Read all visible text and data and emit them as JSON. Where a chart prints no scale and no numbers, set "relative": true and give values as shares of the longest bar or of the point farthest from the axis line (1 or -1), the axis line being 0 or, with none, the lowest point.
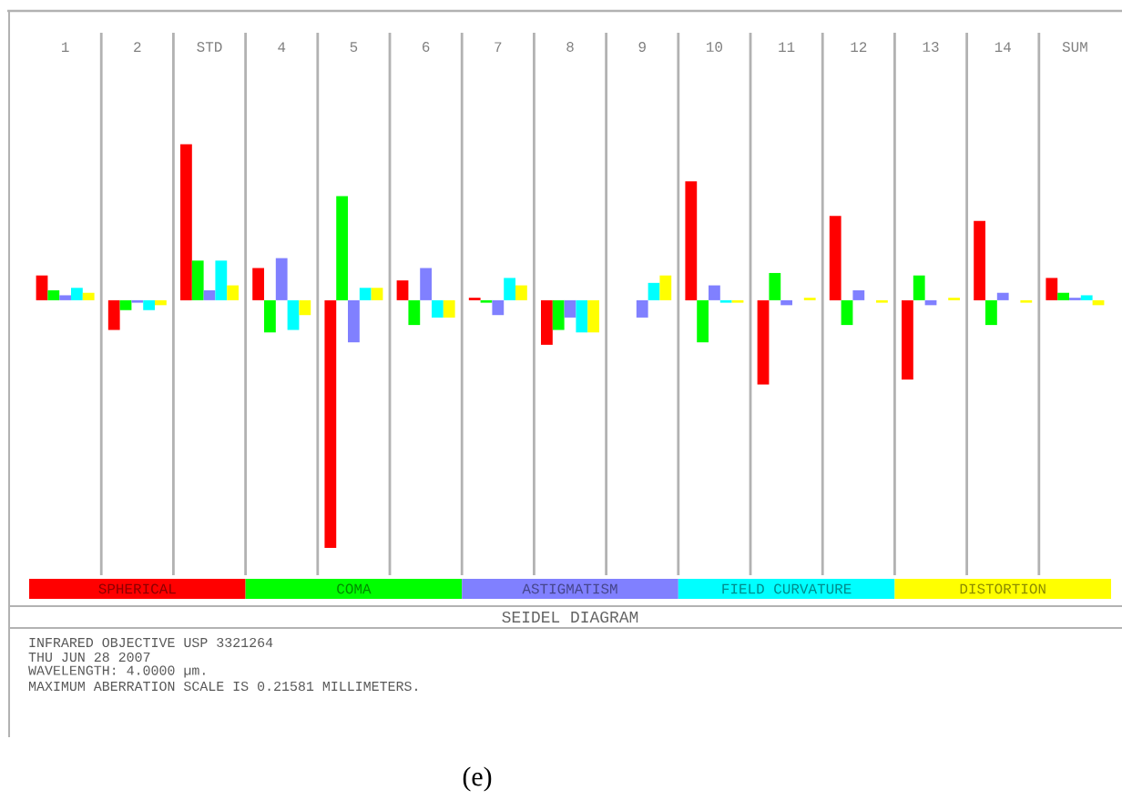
{
  "chart_data": {
    "type": "bar",
    "relative": true,
    "title": "SEIDEL DIAGRAM",
    "categories": [
      "1",
      "2",
      "STD",
      "4",
      "5",
      "6",
      "7",
      "8",
      "9",
      "10",
      "11",
      "12",
      "13",
      "14",
      "SUM"
    ],
    "series": [
      {
        "name": "SPHERICAL",
        "color": "#ff0000",
        "values": [
          0.1,
          -0.12,
          0.63,
          0.13,
          -1,
          0.08,
          0.01,
          -0.18,
          0,
          0.48,
          -0.34,
          0.34,
          -0.32,
          0.32,
          0.09
        ]
      },
      {
        "name": "COMA",
        "color": "#00ff00",
        "values": [
          0.04,
          -0.04,
          0.16,
          -0.13,
          0.42,
          -0.1,
          -0.01,
          -0.12,
          0,
          -0.17,
          0.11,
          -0.1,
          0.1,
          -0.1,
          0.03
        ]
      },
      {
        "name": "ASTIGMATISM",
        "color": "#8080ff",
        "values": [
          0.02,
          -0.01,
          0.04,
          0.17,
          -0.17,
          0.13,
          -0.06,
          -0.07,
          -0.07,
          0.06,
          -0.02,
          0.04,
          -0.02,
          0.03,
          0.01
        ]
      },
      {
        "name": "FIELD CURVATURE",
        "color": "#00ffff",
        "values": [
          0.05,
          -0.04,
          0.16,
          -0.12,
          0.05,
          -0.07,
          0.09,
          -0.13,
          0.07,
          -0.01,
          0,
          0,
          0,
          0,
          0.02
        ]
      },
      {
        "name": "DISTORTION",
        "color": "#ffff00",
        "values": [
          0.03,
          -0.02,
          0.06,
          -0.06,
          0.05,
          -0.07,
          0.06,
          -0.13,
          0.1,
          -0.01,
          0.01,
          -0.01,
          0.01,
          -0.01,
          -0.02
        ]
      }
    ],
    "legend": "bottom",
    "grid": "x",
    "annotations": [
      "INFRARED OBJECTIVE USP 3321264",
      "THU JUN 28 2007",
      "WAVELENGTH: 4.0000 µm.",
      "MAXIMUM ABERRATION SCALE IS 0.21581 MILLIMETERS.",
      "(e)"
    ]
  }
}
